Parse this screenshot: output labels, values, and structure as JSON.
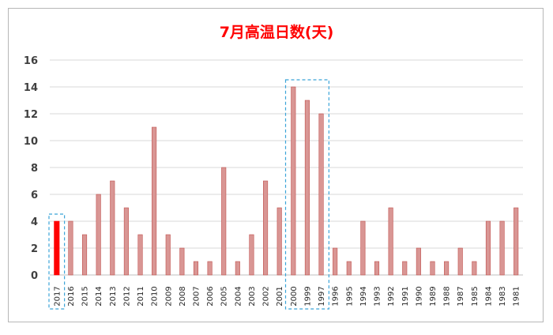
{
  "chart_data": {
    "type": "bar",
    "title": "7月高温日数(天)",
    "xlabel": "",
    "ylabel": "",
    "ylim": [
      0,
      16
    ],
    "yticks": [
      0,
      2,
      4,
      6,
      8,
      10,
      12,
      14,
      16
    ],
    "grid": true,
    "legend": "none",
    "categories": [
      "2017",
      "2016",
      "2015",
      "2014",
      "2013",
      "2012",
      "2011",
      "2010",
      "2009",
      "2008",
      "2007",
      "2006",
      "2005",
      "2004",
      "2003",
      "2002",
      "2001",
      "2000",
      "1999",
      "1997",
      "1996",
      "1995",
      "1994",
      "1993",
      "1992",
      "1991",
      "1990",
      "1989",
      "1988",
      "1987",
      "1985",
      "1984",
      "1983",
      "1981"
    ],
    "values": [
      4,
      4,
      3,
      6,
      7,
      5,
      3,
      11,
      3,
      2,
      1,
      1,
      8,
      1,
      3,
      7,
      5,
      14,
      13,
      12,
      2,
      1,
      4,
      1,
      5,
      1,
      2,
      1,
      1,
      2,
      1,
      4,
      4,
      5
    ],
    "highlight_category": "2017",
    "highlight_color": "#ff0000",
    "bar_color": "#d99694",
    "bar_edge_color": "#c0504d",
    "highlight_boxes": [
      [
        "2017"
      ],
      [
        "2000",
        "1999",
        "1997"
      ]
    ],
    "box_color": "#3ba4d8"
  }
}
